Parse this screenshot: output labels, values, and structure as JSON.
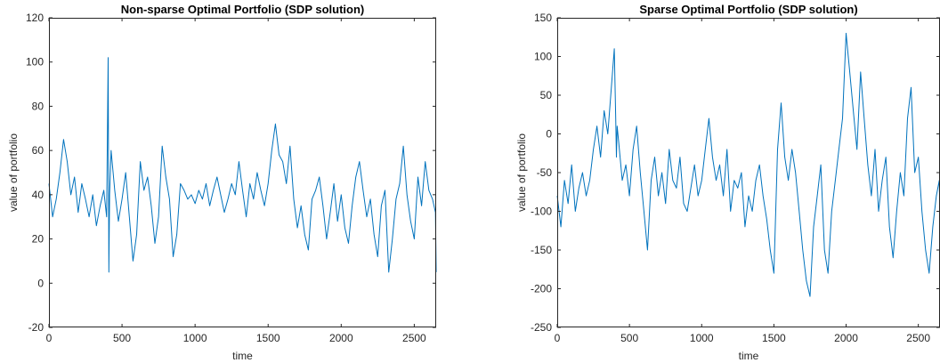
{
  "chart_data": [
    {
      "type": "line",
      "title": "Non-sparse Optimal Portfolio (SDP solution)",
      "xlabel": "time",
      "ylabel": "value of portfolio",
      "xlim": [
        0,
        2650
      ],
      "ylim": [
        -20,
        120
      ],
      "xticks": [
        0,
        500,
        1000,
        1500,
        2000,
        2500
      ],
      "yticks": [
        -20,
        0,
        20,
        40,
        60,
        80,
        100,
        120
      ],
      "grid": false,
      "series": [
        {
          "color": "#0072BD",
          "x": [
            0,
            25,
            50,
            75,
            100,
            125,
            150,
            175,
            200,
            225,
            250,
            275,
            300,
            325,
            350,
            375,
            395,
            405,
            410,
            415,
            425,
            450,
            475,
            500,
            525,
            550,
            575,
            600,
            625,
            650,
            675,
            700,
            725,
            750,
            775,
            800,
            825,
            850,
            875,
            900,
            925,
            950,
            975,
            1000,
            1025,
            1050,
            1075,
            1100,
            1125,
            1150,
            1175,
            1200,
            1225,
            1250,
            1275,
            1300,
            1325,
            1350,
            1375,
            1400,
            1425,
            1450,
            1475,
            1500,
            1525,
            1550,
            1575,
            1600,
            1625,
            1650,
            1675,
            1700,
            1725,
            1750,
            1775,
            1800,
            1825,
            1850,
            1875,
            1900,
            1925,
            1950,
            1975,
            2000,
            2025,
            2050,
            2075,
            2100,
            2125,
            2150,
            2175,
            2200,
            2225,
            2250,
            2275,
            2300,
            2325,
            2350,
            2375,
            2400,
            2425,
            2450,
            2475,
            2500,
            2525,
            2550,
            2575,
            2600,
            2625,
            2645,
            2650
          ],
          "y": [
            45,
            30,
            38,
            50,
            65,
            55,
            40,
            48,
            32,
            45,
            38,
            30,
            40,
            26,
            35,
            42,
            30,
            102,
            5,
            40,
            60,
            42,
            28,
            38,
            50,
            30,
            10,
            22,
            55,
            42,
            48,
            35,
            18,
            30,
            62,
            48,
            38,
            12,
            22,
            45,
            42,
            38,
            40,
            36,
            42,
            38,
            45,
            35,
            42,
            48,
            40,
            32,
            38,
            45,
            40,
            55,
            42,
            30,
            45,
            38,
            50,
            42,
            35,
            45,
            60,
            72,
            58,
            55,
            45,
            62,
            38,
            25,
            35,
            22,
            15,
            38,
            42,
            48,
            35,
            20,
            32,
            45,
            28,
            40,
            25,
            18,
            35,
            48,
            55,
            42,
            30,
            38,
            22,
            12,
            35,
            42,
            5,
            20,
            38,
            45,
            62,
            40,
            28,
            20,
            48,
            35,
            55,
            42,
            38,
            32,
            5
          ]
        }
      ]
    },
    {
      "type": "line",
      "title": "Sparse Optimal Portfolio (SDP solution)",
      "xlabel": "time",
      "ylabel": "value of portfolio",
      "xlim": [
        0,
        2650
      ],
      "ylim": [
        -250,
        150
      ],
      "xticks": [
        0,
        500,
        1000,
        1500,
        2000,
        2500
      ],
      "yticks": [
        -250,
        -200,
        -150,
        -100,
        -50,
        0,
        50,
        100,
        150
      ],
      "grid": false,
      "series": [
        {
          "color": "#0072BD",
          "x": [
            0,
            25,
            50,
            75,
            100,
            125,
            150,
            175,
            200,
            225,
            250,
            275,
            300,
            325,
            350,
            375,
            395,
            405,
            410,
            415,
            425,
            450,
            475,
            500,
            525,
            550,
            575,
            600,
            625,
            650,
            675,
            700,
            725,
            750,
            775,
            800,
            825,
            850,
            875,
            900,
            925,
            950,
            975,
            1000,
            1025,
            1050,
            1075,
            1100,
            1125,
            1150,
            1175,
            1200,
            1225,
            1250,
            1275,
            1300,
            1325,
            1350,
            1375,
            1400,
            1425,
            1450,
            1475,
            1500,
            1525,
            1550,
            1575,
            1600,
            1625,
            1650,
            1675,
            1700,
            1725,
            1750,
            1775,
            1800,
            1825,
            1850,
            1875,
            1900,
            1925,
            1950,
            1975,
            2000,
            2025,
            2050,
            2075,
            2100,
            2125,
            2150,
            2175,
            2200,
            2225,
            2250,
            2275,
            2300,
            2325,
            2350,
            2375,
            2400,
            2425,
            2450,
            2475,
            2500,
            2525,
            2550,
            2575,
            2600,
            2625,
            2645,
            2650
          ],
          "y": [
            -80,
            -120,
            -60,
            -90,
            -40,
            -100,
            -70,
            -50,
            -80,
            -60,
            -20,
            10,
            -30,
            30,
            0,
            60,
            110,
            20,
            -30,
            10,
            -10,
            -60,
            -40,
            -80,
            -20,
            10,
            -50,
            -100,
            -150,
            -60,
            -30,
            -80,
            -50,
            -90,
            -20,
            -60,
            -70,
            -30,
            -90,
            -100,
            -70,
            -40,
            -80,
            -60,
            -20,
            20,
            -30,
            -60,
            -40,
            -80,
            -20,
            -100,
            -60,
            -70,
            -50,
            -120,
            -80,
            -100,
            -60,
            -40,
            -80,
            -110,
            -150,
            -180,
            -20,
            40,
            -30,
            -60,
            -20,
            -50,
            -100,
            -150,
            -190,
            -210,
            -120,
            -80,
            -40,
            -150,
            -180,
            -100,
            -60,
            -20,
            20,
            130,
            80,
            30,
            -20,
            80,
            20,
            -40,
            -80,
            -20,
            -100,
            -60,
            -30,
            -120,
            -160,
            -100,
            -50,
            -80,
            20,
            60,
            -50,
            -30,
            -100,
            -150,
            -180,
            -120,
            -80,
            -60,
            -120
          ]
        }
      ]
    }
  ]
}
